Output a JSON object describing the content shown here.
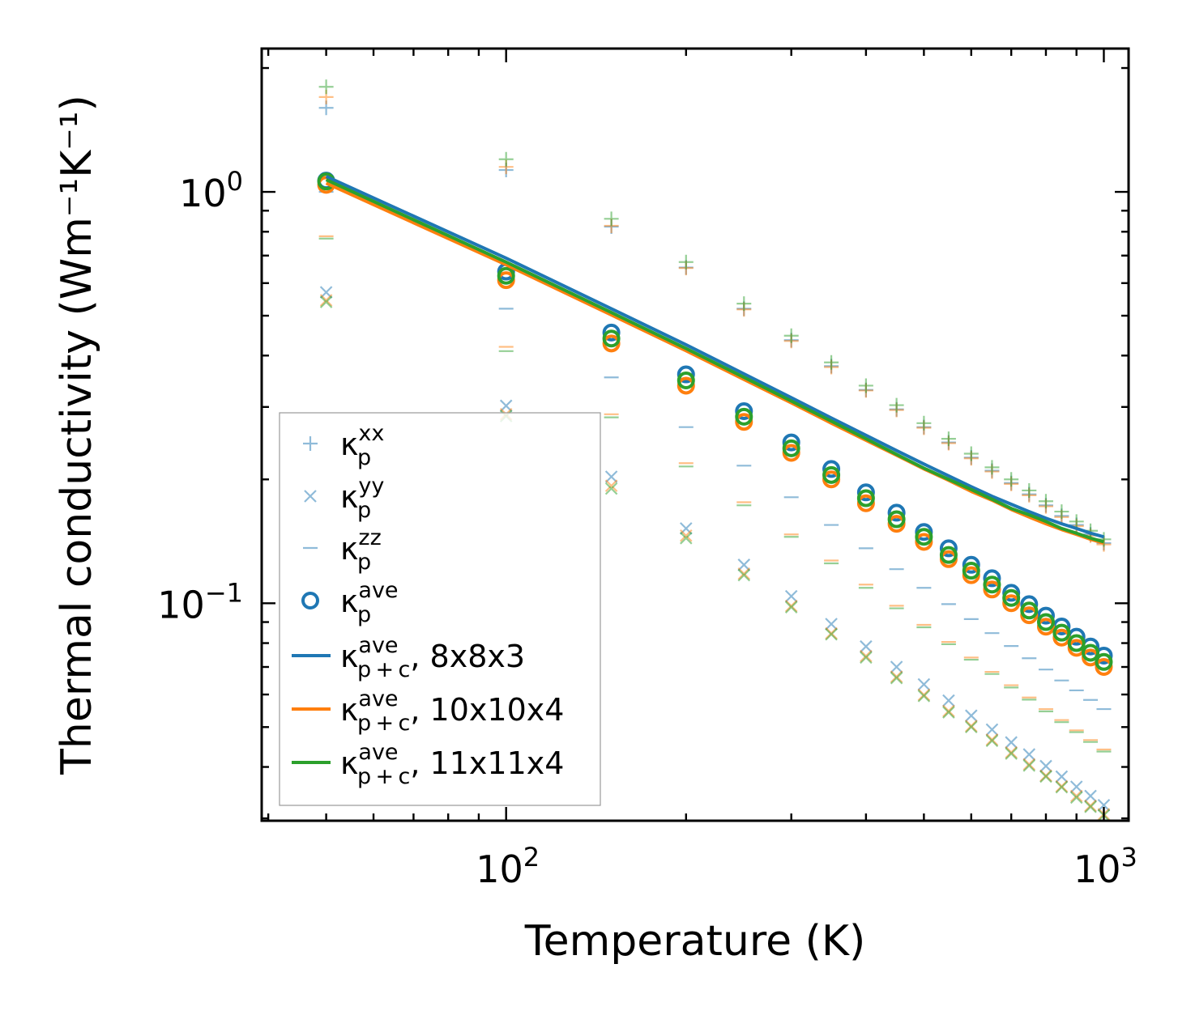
{
  "chart_data": {
    "type": "scatter",
    "title": "",
    "xlabel": "Temperature (K)",
    "ylabel": "Thermal conductivity (Wm⁻¹K⁻¹)",
    "xscale": "log",
    "yscale": "log",
    "xlim": [
      39,
      1100
    ],
    "ylim": [
      0.0296,
      2.23
    ],
    "legend_location": "lower-left",
    "colors": {
      "c8": "#1f77b4",
      "c10": "#ff7f0e",
      "c11": "#2ca02c"
    },
    "xticks": [
      {
        "value": 100,
        "base": "10",
        "exp": "2"
      },
      {
        "value": 1000,
        "base": "10",
        "exp": "3"
      }
    ],
    "yticks": [
      {
        "value": 1.0,
        "base": "10",
        "exp": "0"
      },
      {
        "value": 0.1,
        "base": "10",
        "exp": "−1"
      }
    ],
    "x": [
      50,
      100,
      150,
      200,
      250,
      300,
      350,
      400,
      450,
      500,
      550,
      600,
      650,
      700,
      750,
      800,
      850,
      900,
      950,
      1000
    ],
    "series": [
      {
        "name": "kxx 8x8x3",
        "color": "#1f77b4",
        "marker": "plus",
        "values": [
          1.6,
          1.13,
          0.823,
          0.655,
          0.52,
          0.436,
          0.377,
          0.33,
          0.296,
          0.268,
          0.246,
          0.226,
          0.21,
          0.196,
          0.184,
          0.173,
          0.163,
          0.155,
          0.147,
          0.14
        ]
      },
      {
        "name": "kxx 10x10x4",
        "color": "#ff7f0e",
        "marker": "plus",
        "values": [
          1.7,
          1.15,
          0.827,
          0.653,
          0.518,
          0.434,
          0.375,
          0.329,
          0.295,
          0.267,
          0.245,
          0.225,
          0.209,
          0.195,
          0.183,
          0.172,
          0.162,
          0.154,
          0.146,
          0.139
        ]
      },
      {
        "name": "kxx 11x11x4",
        "color": "#2ca02c",
        "marker": "plus",
        "values": [
          1.8,
          1.2,
          0.86,
          0.675,
          0.535,
          0.447,
          0.385,
          0.338,
          0.303,
          0.274,
          0.251,
          0.231,
          0.214,
          0.2,
          0.188,
          0.177,
          0.167,
          0.158,
          0.15,
          0.143
        ]
      },
      {
        "name": "kyy 8x8x3",
        "color": "#1f77b4",
        "marker": "x",
        "values": [
          0.57,
          0.302,
          0.203,
          0.152,
          0.124,
          0.104,
          0.089,
          0.0785,
          0.07,
          0.0635,
          0.058,
          0.0533,
          0.0493,
          0.0459,
          0.0429,
          0.0402,
          0.0379,
          0.0358,
          0.034,
          0.0323
        ]
      },
      {
        "name": "kyy 10x10x4",
        "color": "#ff7f0e",
        "marker": "x",
        "values": [
          0.545,
          0.288,
          0.193,
          0.146,
          0.118,
          0.0985,
          0.0845,
          0.0744,
          0.0663,
          0.0599,
          0.0547,
          0.0503,
          0.0466,
          0.0434,
          0.0406,
          0.0381,
          0.0359,
          0.034,
          0.0322,
          0.0307
        ]
      },
      {
        "name": "kyy 11x11x4",
        "color": "#2ca02c",
        "marker": "x",
        "values": [
          0.54,
          0.285,
          0.19,
          0.144,
          0.117,
          0.0978,
          0.084,
          0.0738,
          0.0658,
          0.0595,
          0.0543,
          0.05,
          0.0463,
          0.0431,
          0.0403,
          0.0379,
          0.0357,
          0.0337,
          0.032,
          0.0305
        ]
      },
      {
        "name": "kzz 8x8x3",
        "color": "#1f77b4",
        "marker": "hline",
        "values": [
          1.0,
          0.52,
          0.354,
          0.268,
          0.216,
          0.181,
          0.155,
          0.136,
          0.121,
          0.109,
          0.0995,
          0.0915,
          0.0846,
          0.0787,
          0.0735,
          0.069,
          0.0649,
          0.0614,
          0.0582,
          0.0553
        ]
      },
      {
        "name": "kzz 10x10x4",
        "color": "#ff7f0e",
        "marker": "hline",
        "values": [
          0.78,
          0.42,
          0.288,
          0.219,
          0.176,
          0.147,
          0.127,
          0.111,
          0.0986,
          0.0886,
          0.0805,
          0.0738,
          0.0681,
          0.0632,
          0.059,
          0.0553,
          0.052,
          0.0491,
          0.0465,
          0.0441
        ]
      },
      {
        "name": "kzz 11x11x4",
        "color": "#2ca02c",
        "marker": "hline",
        "values": [
          0.77,
          0.41,
          0.283,
          0.215,
          0.173,
          0.145,
          0.125,
          0.109,
          0.0972,
          0.0874,
          0.0795,
          0.0729,
          0.0673,
          0.0624,
          0.0583,
          0.0546,
          0.0514,
          0.0486,
          0.046,
          0.0436
        ]
      },
      {
        "name": "kave 8x8x3",
        "color": "#1f77b4",
        "marker": "circle",
        "values": [
          1.065,
          0.64,
          0.455,
          0.36,
          0.293,
          0.246,
          0.212,
          0.186,
          0.166,
          0.149,
          0.136,
          0.124,
          0.115,
          0.106,
          0.0995,
          0.0933,
          0.0878,
          0.0829,
          0.0785,
          0.0746
        ]
      },
      {
        "name": "kave 10x10x4",
        "color": "#ff7f0e",
        "marker": "circle",
        "values": [
          1.04,
          0.61,
          0.428,
          0.338,
          0.276,
          0.232,
          0.2,
          0.175,
          0.156,
          0.141,
          0.128,
          0.117,
          0.108,
          0.1,
          0.0935,
          0.0877,
          0.0825,
          0.0779,
          0.0738,
          0.07
        ]
      },
      {
        "name": "kave 11x11x4",
        "color": "#2ca02c",
        "marker": "circle",
        "values": [
          1.06,
          0.625,
          0.44,
          0.348,
          0.284,
          0.238,
          0.205,
          0.18,
          0.16,
          0.145,
          0.131,
          0.12,
          0.111,
          0.103,
          0.096,
          0.09,
          0.0848,
          0.08,
          0.0758,
          0.072
        ]
      },
      {
        "name": "kp+c ave 8x8x3",
        "color": "#1f77b4",
        "marker": "line",
        "values": [
          1.09,
          0.69,
          0.52,
          0.425,
          0.361,
          0.316,
          0.282,
          0.256,
          0.235,
          0.218,
          0.204,
          0.192,
          0.182,
          0.174,
          0.167,
          0.161,
          0.156,
          0.152,
          0.148,
          0.145
        ]
      },
      {
        "name": "kp+c ave 10x10x4",
        "color": "#ff7f0e",
        "marker": "line",
        "values": [
          1.05,
          0.665,
          0.502,
          0.411,
          0.35,
          0.307,
          0.274,
          0.249,
          0.229,
          0.212,
          0.199,
          0.187,
          0.178,
          0.169,
          0.162,
          0.156,
          0.151,
          0.147,
          0.143,
          0.14
        ]
      },
      {
        "name": "kp+c ave 11x11x4",
        "color": "#2ca02c",
        "marker": "line",
        "values": [
          1.07,
          0.675,
          0.509,
          0.416,
          0.354,
          0.31,
          0.277,
          0.251,
          0.23,
          0.213,
          0.2,
          0.189,
          0.179,
          0.17,
          0.164,
          0.158,
          0.152,
          0.148,
          0.144,
          0.141
        ]
      }
    ],
    "legend": [
      {
        "marker": "plus",
        "color": "#1f77b4",
        "sym": "κ",
        "sub": "p",
        "sup": "xx",
        "suffix": ""
      },
      {
        "marker": "x",
        "color": "#1f77b4",
        "sym": "κ",
        "sub": "p",
        "sup": "yy",
        "suffix": ""
      },
      {
        "marker": "hline",
        "color": "#1f77b4",
        "sym": "κ",
        "sub": "p",
        "sup": "zz",
        "suffix": ""
      },
      {
        "marker": "circle",
        "color": "#1f77b4",
        "sym": "κ",
        "sub": "p",
        "sup": "ave",
        "suffix": ""
      },
      {
        "marker": "line",
        "color": "#1f77b4",
        "sym": "κ",
        "sub": "p + c",
        "sup": "ave",
        "suffix": ", 8x8x3"
      },
      {
        "marker": "line",
        "color": "#ff7f0e",
        "sym": "κ",
        "sub": "p + c",
        "sup": "ave",
        "suffix": ", 10x10x4"
      },
      {
        "marker": "line",
        "color": "#2ca02c",
        "sym": "κ",
        "sub": "p + c",
        "sup": "ave",
        "suffix": ", 11x11x4"
      }
    ]
  }
}
